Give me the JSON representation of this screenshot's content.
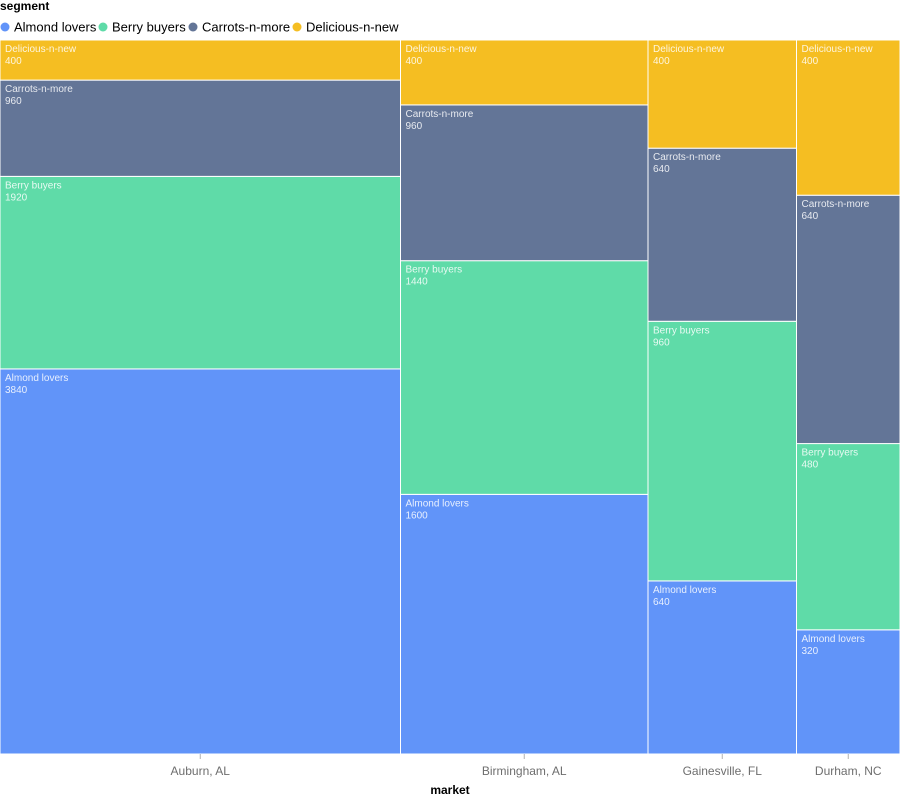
{
  "chart_data": {
    "type": "marimekko",
    "legend_title": "segment",
    "xlabel": "market",
    "categories": [
      "Auburn, AL",
      "Birmingham, AL",
      "Gainesville, FL",
      "Durham, NC"
    ],
    "series": [
      {
        "name": "Almond lovers",
        "color": "#6194f9",
        "values": [
          3840,
          1600,
          640,
          320
        ]
      },
      {
        "name": "Berry buyers",
        "color": "#5fdba8",
        "values": [
          1920,
          1440,
          960,
          480
        ]
      },
      {
        "name": "Carrots-n-more",
        "color": "#637597",
        "values": [
          960,
          960,
          640,
          640
        ]
      },
      {
        "name": "Delicious-n-new",
        "color": "#f5be22",
        "values": [
          400,
          400,
          400,
          400
        ]
      }
    ],
    "stacking": "normalized within each market; column width proportional to market total",
    "legend_position": "top-left"
  }
}
